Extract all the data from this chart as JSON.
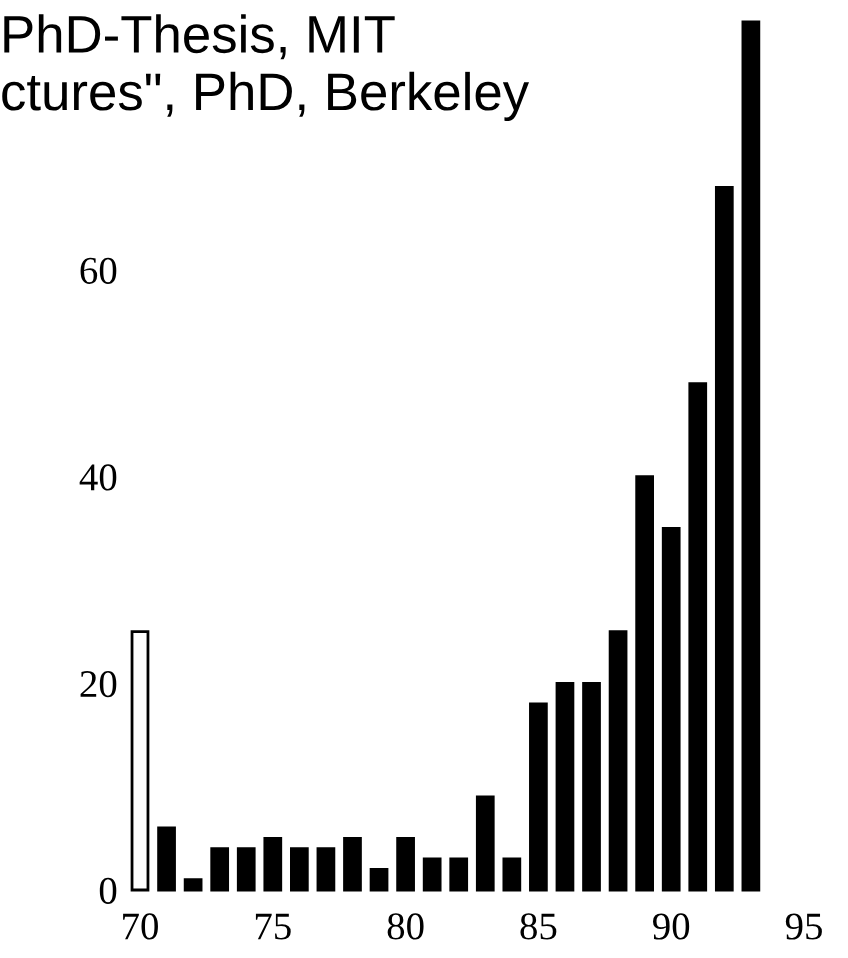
{
  "chart_data": {
    "type": "bar",
    "x": [
      70,
      71,
      72,
      73,
      74,
      75,
      76,
      77,
      78,
      79,
      80,
      81,
      82,
      83,
      84,
      85,
      86,
      87,
      88,
      89,
      90,
      91,
      92,
      93
    ],
    "values": [
      25,
      6,
      1,
      4,
      4,
      5,
      4,
      4,
      5,
      2,
      5,
      3,
      3,
      9,
      3,
      18,
      20,
      20,
      25,
      40,
      35,
      49,
      68,
      84
    ],
    "colors": [
      "#ffffff",
      "#000000",
      "#000000",
      "#000000",
      "#000000",
      "#000000",
      "#000000",
      "#000000",
      "#000000",
      "#000000",
      "#000000",
      "#000000",
      "#000000",
      "#000000",
      "#000000",
      "#000000",
      "#000000",
      "#000000",
      "#000000",
      "#000000",
      "#000000",
      "#000000",
      "#000000",
      "#000000"
    ],
    "xlim": [
      70,
      95
    ],
    "xticks": [
      70,
      75,
      80,
      85,
      90,
      95
    ],
    "ylim": [
      0,
      84
    ],
    "yticks": [
      0,
      20,
      40,
      60
    ],
    "grid": false,
    "legend": false,
    "annotations": [
      "PhD-Thesis, MIT",
      "ctures\", PhD, Berkeley"
    ]
  }
}
